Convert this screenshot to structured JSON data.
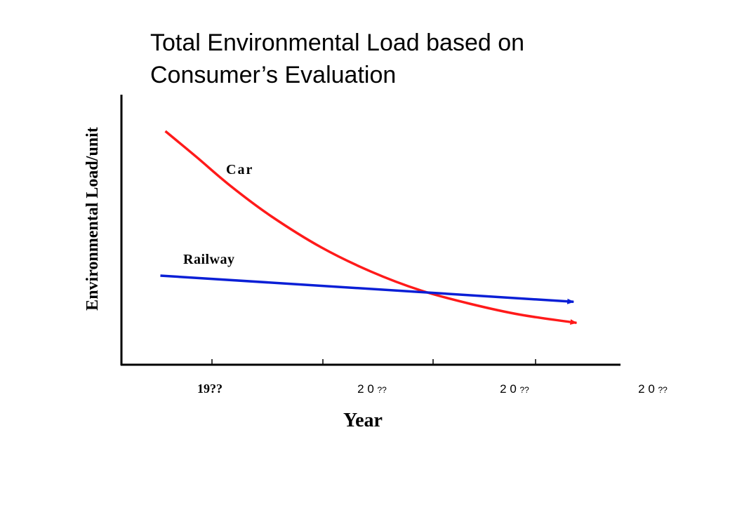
{
  "chart_data": {
    "type": "line",
    "title_lines": [
      "Total Environmental Load based on",
      "Consumer’s Evaluation"
    ],
    "xlabel": "Year",
    "ylabel": "Environmental Load/unit",
    "tick_labels": [
      {
        "prefix": "19",
        "suffix": "??"
      },
      {
        "prefix": "2 0 ",
        "suffix": "??"
      },
      {
        "prefix": "2 0 ",
        "suffix": "??"
      },
      {
        "prefix": "2 0 ",
        "suffix": "??"
      }
    ],
    "xlim": [
      0,
      10
    ],
    "ylim": [
      0,
      10
    ],
    "grid": false,
    "series": [
      {
        "name": "Car",
        "color": "#ff1a1a",
        "arrow": true,
        "x": [
          0.88,
          1.5,
          2.2,
          3.0,
          4.0,
          5.0,
          6.0,
          7.0,
          8.0,
          9.12
        ],
        "y": [
          8.65,
          7.7,
          6.6,
          5.5,
          4.35,
          3.45,
          2.75,
          2.25,
          1.85,
          1.55
        ]
      },
      {
        "name": "Railway",
        "color": "#0a1fd6",
        "arrow": true,
        "x": [
          0.78,
          9.06
        ],
        "y": [
          3.3,
          2.33
        ]
      }
    ]
  }
}
